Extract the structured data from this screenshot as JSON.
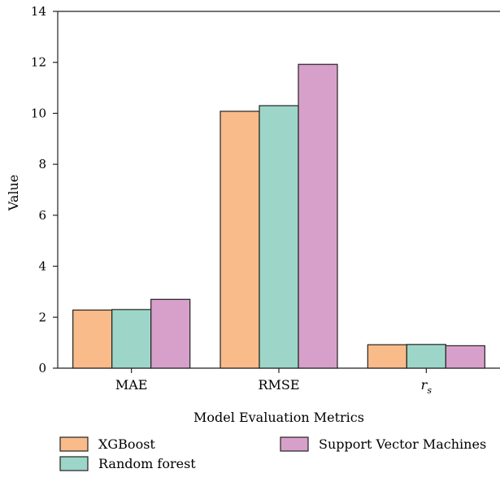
{
  "chart_data": {
    "type": "bar",
    "title": "",
    "xlabel": "Model Evaluation Metrics",
    "ylabel": "Value",
    "ylim": [
      0,
      14
    ],
    "yticks": [
      0,
      2,
      4,
      6,
      8,
      10,
      12,
      14
    ],
    "categories": [
      "MAE",
      "RMSE",
      "r_s"
    ],
    "category_labels": [
      {
        "main": "MAE",
        "sub": ""
      },
      {
        "main": "RMSE",
        "sub": ""
      },
      {
        "main": "r",
        "sub": "s"
      }
    ],
    "series": [
      {
        "name": "XGBoost",
        "color": "#f9bb8a",
        "values": [
          2.28,
          10.08,
          0.92
        ]
      },
      {
        "name": "Random forest",
        "color": "#9dd6c8",
        "values": [
          2.3,
          10.3,
          0.93
        ]
      },
      {
        "name": "Support Vector Machines",
        "color": "#d7a0ca",
        "values": [
          2.7,
          11.92,
          0.88
        ]
      }
    ],
    "grid": false,
    "legend_position": "bottom"
  }
}
